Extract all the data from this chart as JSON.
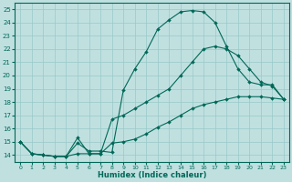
{
  "xlabel": "Humidex (Indice chaleur)",
  "xlim": [
    -0.5,
    23.5
  ],
  "ylim": [
    13.5,
    25.5
  ],
  "xticks": [
    0,
    1,
    2,
    3,
    4,
    5,
    6,
    7,
    8,
    9,
    10,
    11,
    12,
    13,
    14,
    15,
    16,
    17,
    18,
    19,
    20,
    21,
    22,
    23
  ],
  "yticks": [
    14,
    15,
    16,
    17,
    18,
    19,
    20,
    21,
    22,
    23,
    24,
    25
  ],
  "bg_color": "#c0e0e0",
  "grid_color": "#98c8c8",
  "line_color": "#006858",
  "line1_x": [
    0,
    1,
    2,
    3,
    4,
    5,
    6,
    7,
    8,
    9,
    10,
    11,
    12,
    13,
    14,
    15,
    16,
    17,
    18,
    19,
    20,
    21,
    22,
    23
  ],
  "line1_y": [
    15.0,
    14.1,
    14.0,
    13.9,
    13.9,
    14.9,
    14.3,
    14.3,
    14.2,
    18.9,
    20.5,
    21.8,
    23.5,
    24.2,
    24.8,
    24.9,
    24.8,
    24.0,
    22.2,
    20.5,
    19.5,
    19.3,
    19.3,
    18.2
  ],
  "line2_x": [
    0,
    1,
    2,
    3,
    4,
    5,
    6,
    7,
    8,
    9,
    10,
    11,
    12,
    13,
    14,
    15,
    16,
    17,
    18,
    19,
    20,
    21,
    22,
    23
  ],
  "line2_y": [
    15.0,
    14.1,
    14.0,
    13.9,
    13.9,
    15.3,
    14.1,
    14.1,
    16.7,
    17.0,
    17.5,
    18.0,
    18.5,
    19.0,
    20.0,
    21.0,
    22.0,
    22.2,
    22.0,
    21.5,
    20.5,
    19.5,
    19.2,
    18.2
  ],
  "line3_x": [
    0,
    1,
    2,
    3,
    4,
    5,
    6,
    7,
    8,
    9,
    10,
    11,
    12,
    13,
    14,
    15,
    16,
    17,
    18,
    19,
    20,
    21,
    22,
    23
  ],
  "line3_y": [
    15.0,
    14.1,
    14.0,
    13.9,
    13.9,
    14.1,
    14.1,
    14.1,
    14.9,
    15.0,
    15.2,
    15.6,
    16.1,
    16.5,
    17.0,
    17.5,
    17.8,
    18.0,
    18.2,
    18.4,
    18.4,
    18.4,
    18.3,
    18.2
  ]
}
